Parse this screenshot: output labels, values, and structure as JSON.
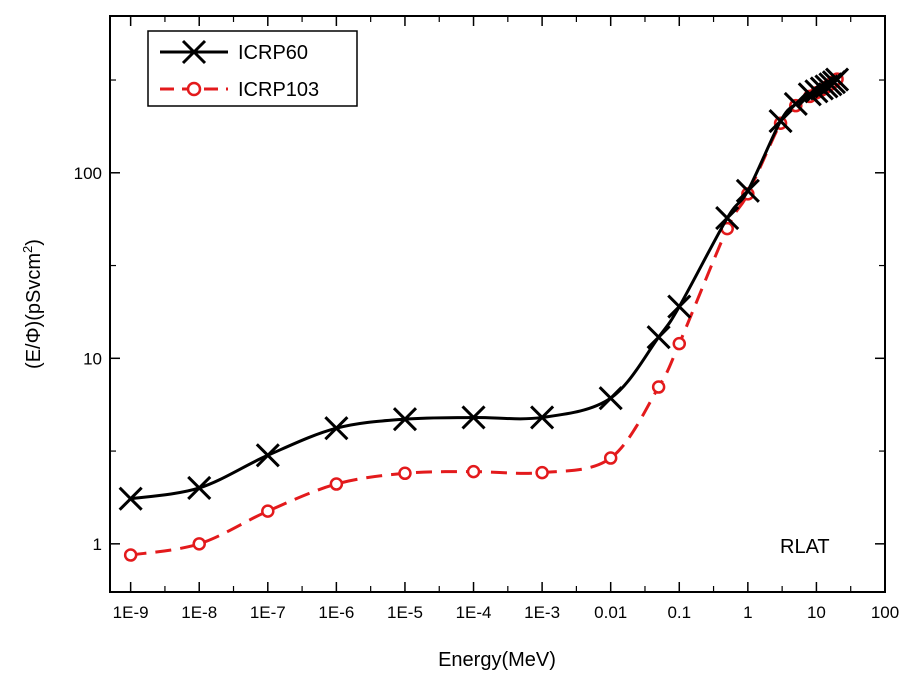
{
  "chart_data": {
    "type": "line",
    "title": "",
    "xlabel": "Energy(MeV)",
    "ylabel_parts": [
      "(E/",
      "Φ",
      ")(pSvcm",
      "2",
      ")"
    ],
    "xscale": "log",
    "yscale": "log",
    "xlim": [
      5e-10,
      100
    ],
    "ylim": [
      0.55,
      700
    ],
    "x_ticks": [
      {
        "value": 1e-09,
        "label": "1E-9"
      },
      {
        "value": 1e-08,
        "label": "1E-8"
      },
      {
        "value": 1e-07,
        "label": "1E-7"
      },
      {
        "value": 1e-06,
        "label": "1E-6"
      },
      {
        "value": 1e-05,
        "label": "1E-5"
      },
      {
        "value": 0.0001,
        "label": "1E-4"
      },
      {
        "value": 0.001,
        "label": "1E-3"
      },
      {
        "value": 0.01,
        "label": "0.01"
      },
      {
        "value": 0.1,
        "label": "0.1"
      },
      {
        "value": 1,
        "label": "1"
      },
      {
        "value": 10,
        "label": "10"
      },
      {
        "value": 100,
        "label": "100"
      }
    ],
    "y_ticks": [
      {
        "value": 1,
        "label": "1"
      },
      {
        "value": 10,
        "label": "10"
      },
      {
        "value": 100,
        "label": "100"
      }
    ],
    "grid": false,
    "legend_position": "top-left",
    "annotation": "RLAT",
    "series": [
      {
        "name": "ICRP60",
        "color": "#000000",
        "line_style": "solid",
        "marker": "x",
        "x": [
          1e-09,
          1e-08,
          1e-07,
          1e-06,
          1e-05,
          0.0001,
          0.001,
          0.01,
          0.05,
          0.1,
          0.5,
          1,
          3,
          5,
          8,
          10,
          12,
          14,
          16,
          18,
          20
        ],
        "y": [
          1.75,
          2.0,
          3.0,
          4.2,
          4.7,
          4.8,
          4.8,
          6.1,
          13,
          19,
          57,
          80,
          190,
          235,
          265,
          275,
          285,
          292,
          300,
          308,
          318
        ]
      },
      {
        "name": "ICRP103",
        "color": "#e31a1c",
        "line_style": "dashed",
        "marker": "circle-open",
        "x": [
          1e-09,
          1e-08,
          1e-07,
          1e-06,
          1e-05,
          0.0001,
          0.001,
          0.01,
          0.05,
          0.1,
          0.5,
          1,
          3,
          5,
          8,
          10,
          12,
          14,
          16,
          18,
          20
        ],
        "y": [
          0.87,
          1.0,
          1.5,
          2.1,
          2.4,
          2.45,
          2.42,
          2.9,
          7.0,
          12,
          50,
          77,
          185,
          230,
          258,
          270,
          280,
          290,
          300,
          310,
          320
        ]
      }
    ]
  }
}
